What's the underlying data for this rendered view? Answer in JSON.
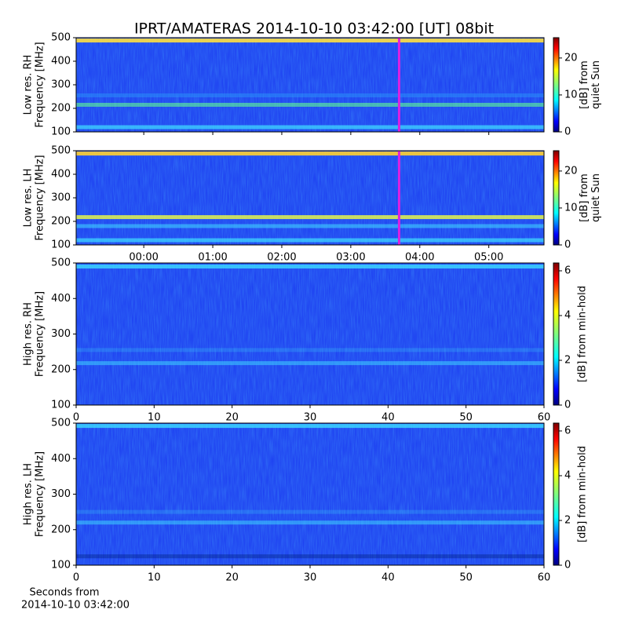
{
  "title": "IPRT/AMATERAS 2014-10-10 03:42:00 [UT]   08bit",
  "chart_data": [
    {
      "type": "spectrogram",
      "ylabel": [
        "Low res. RH",
        "Frequency [MHz]"
      ],
      "xlim": [
        -0.98,
        5.8
      ],
      "xticks": [
        0,
        1,
        2,
        3,
        4,
        5
      ],
      "ylim": [
        100,
        500
      ],
      "yticks": [
        100,
        200,
        300,
        400,
        500
      ],
      "marker_x": 3.7,
      "marker_color": "#e020e0",
      "colorbar": {
        "label": [
          "[dB] from",
          "quiet Sun"
        ],
        "lim": [
          0,
          25.5
        ],
        "ticks": [
          0,
          10,
          20
        ],
        "colormap": "jet"
      }
    },
    {
      "type": "spectrogram",
      "ylabel": [
        "Low res. LH",
        "Frequency [MHz]"
      ],
      "xlim": [
        -0.98,
        5.8
      ],
      "xticks": [
        {
          "value": 0,
          "label": "00:00"
        },
        {
          "value": 1,
          "label": "01:00"
        },
        {
          "value": 2,
          "label": "02:00"
        },
        {
          "value": 3,
          "label": "03:00"
        },
        {
          "value": 4,
          "label": "04:00"
        },
        {
          "value": 5,
          "label": "05:00"
        }
      ],
      "ylim": [
        100,
        500
      ],
      "yticks": [
        100,
        200,
        300,
        400,
        500
      ],
      "marker_x": 3.7,
      "marker_color": "#e020e0",
      "colorbar": {
        "label": [
          "[dB] from",
          "quiet Sun"
        ],
        "lim": [
          0,
          25.5
        ],
        "ticks": [
          0,
          10,
          20
        ],
        "colormap": "jet"
      }
    },
    {
      "type": "spectrogram",
      "ylabel": [
        "High res. RH",
        "Frequency [MHz]"
      ],
      "xlim": [
        0,
        60
      ],
      "xticks": [
        0,
        10,
        20,
        30,
        40,
        50,
        60
      ],
      "ylim": [
        100,
        500
      ],
      "yticks": [
        100,
        200,
        300,
        400,
        500
      ],
      "colorbar": {
        "label": [
          "[dB] from min-hold"
        ],
        "lim": [
          0,
          6.35
        ],
        "ticks": [
          0,
          2,
          4,
          6
        ],
        "colormap": "jet"
      }
    },
    {
      "type": "spectrogram",
      "ylabel": [
        "High res. LH",
        "Frequency [MHz]"
      ],
      "xlim": [
        0,
        60
      ],
      "xticks": [
        0,
        10,
        20,
        30,
        40,
        50,
        60
      ],
      "xlabel": [
        "Seconds from",
        "2014-10-10 03:42:00"
      ],
      "ylim": [
        100,
        500
      ],
      "yticks": [
        100,
        200,
        300,
        400,
        500
      ],
      "colorbar": {
        "label": [
          "[dB] from min-hold"
        ],
        "lim": [
          0,
          6.35
        ],
        "ticks": [
          0,
          2,
          4,
          6
        ],
        "colormap": "jet"
      }
    }
  ]
}
